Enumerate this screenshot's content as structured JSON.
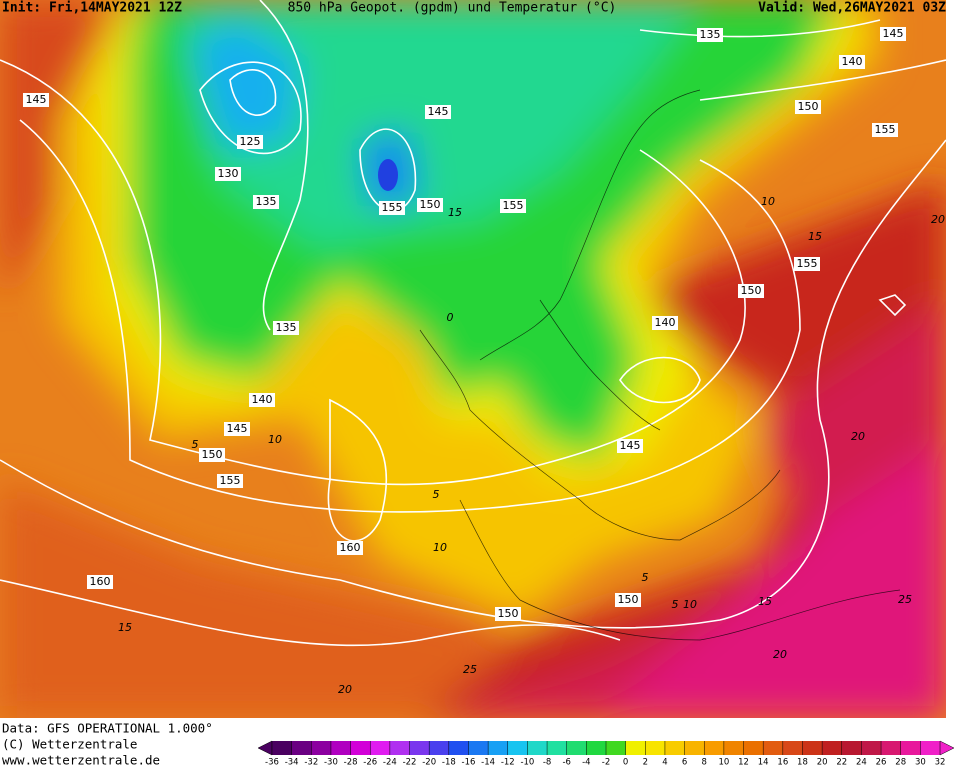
{
  "header": {
    "init": "Init: Fri,14MAY2021 12Z",
    "title": "850 hPa Geopot. (gpdm) und Temperatur (°C)",
    "valid": "Valid: Wed,26MAY2021 03Z"
  },
  "footer": {
    "data": "Data: GFS OPERATIONAL 1.000°",
    "copyright": "(C) Wetterzentrale",
    "url": "www.wetterzentrale.de"
  },
  "map": {
    "geopotential_labels": [
      "145",
      "125",
      "130",
      "135",
      "155",
      "150",
      "145",
      "155",
      "135",
      "140",
      "145",
      "150",
      "155",
      "160",
      "160",
      "150",
      "150",
      "145",
      "140",
      "150",
      "155",
      "150",
      "135",
      "140",
      "145",
      "155"
    ],
    "temperature_labels": [
      "5",
      "10",
      "15",
      "20",
      "25",
      "10",
      "15",
      "20",
      "20",
      "25",
      "10",
      "15",
      "20",
      "0",
      "5",
      "5",
      "10",
      "15",
      "5"
    ]
  },
  "colorbar": {
    "ticks": [
      -36,
      -34,
      -32,
      -30,
      -28,
      -26,
      -24,
      -22,
      -20,
      -18,
      -16,
      -14,
      -12,
      -10,
      -8,
      -6,
      -4,
      -2,
      0,
      2,
      4,
      6,
      8,
      10,
      12,
      14,
      16,
      18,
      20,
      22,
      24,
      26,
      28,
      30,
      32
    ],
    "colors": [
      "#4a0060",
      "#6a0082",
      "#8c00a0",
      "#b000c0",
      "#d200d8",
      "#e01cf0",
      "#b030f0",
      "#7a36ee",
      "#4a40ee",
      "#2050f0",
      "#1a78f2",
      "#18a0f4",
      "#18c4f0",
      "#20d8c8",
      "#20e0a0",
      "#20dc70",
      "#20d840",
      "#40d820",
      "#f0f000",
      "#f8e400",
      "#f8cc00",
      "#f8b400",
      "#f89c00",
      "#f08400",
      "#ea7000",
      "#e25c10",
      "#d84818",
      "#cc3418",
      "#c02020",
      "#b81830",
      "#c01848",
      "#d81870",
      "#e8189c",
      "#f020c8"
    ]
  }
}
